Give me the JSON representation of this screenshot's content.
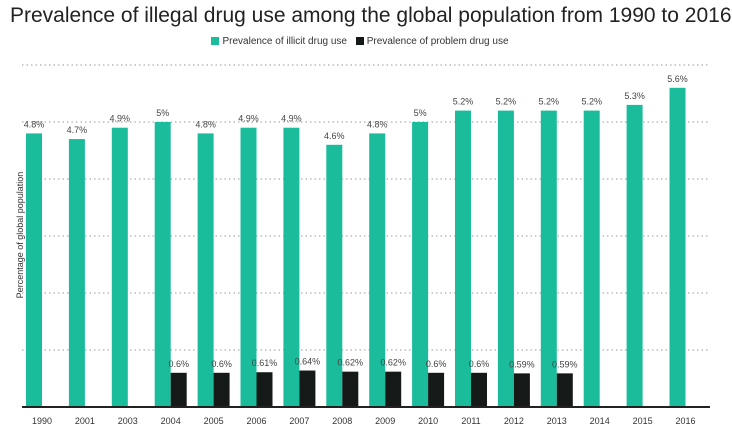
{
  "chart_data": {
    "type": "bar",
    "title": "Prevalence of illegal drug use among the global population from 1990 to 2016",
    "ylabel": "Percentage of global population",
    "xlabel": "",
    "ylim": [
      0,
      6
    ],
    "grid": true,
    "legend_position": "top",
    "categories": [
      "1990",
      "2001",
      "2003",
      "2004",
      "2005",
      "2006",
      "2007",
      "2008",
      "2009",
      "2010",
      "2011",
      "2012",
      "2013",
      "2014",
      "2015",
      "2016"
    ],
    "series": [
      {
        "name": "Prevalence of illicit drug use",
        "color": "#1abc9c",
        "values": [
          4.8,
          4.7,
          4.9,
          5,
          4.8,
          4.9,
          4.9,
          4.6,
          4.8,
          5,
          5.2,
          5.2,
          5.2,
          5.2,
          5.3,
          5.6
        ],
        "labels": [
          "4.8%",
          "4.7%",
          "4.9%",
          "5%",
          "4.8%",
          "4.9%",
          "4.9%",
          "4.6%",
          "4.8%",
          "5%",
          "5.2%",
          "5.2%",
          "5.2%",
          "5.2%",
          "5.3%",
          "5.6%"
        ]
      },
      {
        "name": "Prevalence of problem drug use",
        "color": "#151a18",
        "values": [
          null,
          null,
          null,
          0.6,
          0.6,
          0.61,
          0.64,
          0.62,
          0.62,
          0.6,
          0.6,
          0.59,
          0.59,
          null,
          null,
          null
        ],
        "labels": [
          null,
          null,
          null,
          "0.6%",
          "0.6%",
          "0.61%",
          "0.64%",
          "0.62%",
          "0.62%",
          "0.6%",
          "0.6%",
          "0.59%",
          "0.59%",
          null,
          null,
          null
        ]
      }
    ]
  }
}
